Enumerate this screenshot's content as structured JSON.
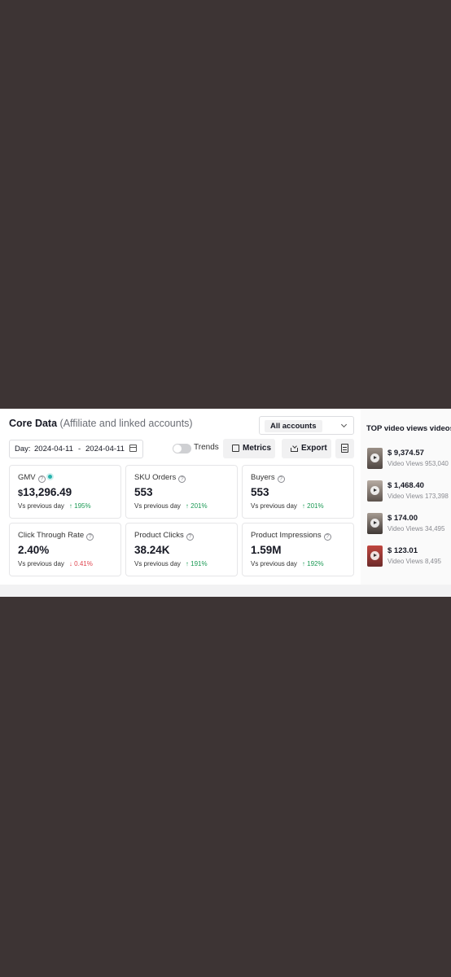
{
  "header": {
    "title": "Core Data",
    "subtitle": "(Affiliate and linked accounts)"
  },
  "account_select": {
    "value": "All accounts"
  },
  "date_range": {
    "label": "Day:",
    "start": "2024-04-11",
    "separator": "-",
    "end": "2024-04-11"
  },
  "toolbar": {
    "trends_label": "Trends",
    "trends_on": false,
    "metrics_label": "Metrics",
    "export_label": "Export"
  },
  "cards": [
    {
      "label": "GMV",
      "currency": "$",
      "value": "13,296.49",
      "compare": "Vs previous day",
      "change": "↑ 195%",
      "direction": "up"
    },
    {
      "label": "SKU Orders",
      "currency": "",
      "value": "553",
      "compare": "Vs previous day",
      "change": "↑ 201%",
      "direction": "up"
    },
    {
      "label": "Buyers",
      "currency": "",
      "value": "553",
      "compare": "Vs previous day",
      "change": "↑ 201%",
      "direction": "up"
    },
    {
      "label": "Click Through Rate",
      "currency": "",
      "value": "2.40%",
      "compare": "Vs previous day",
      "change": "↓ 0.41%",
      "direction": "down"
    },
    {
      "label": "Product Clicks",
      "currency": "",
      "value": "38.24K",
      "compare": "Vs previous day",
      "change": "↑ 191%",
      "direction": "up"
    },
    {
      "label": "Product Impressions",
      "currency": "",
      "value": "1.59M",
      "compare": "Vs previous day",
      "change": "↑ 192%",
      "direction": "up"
    }
  ],
  "top_videos": {
    "title": "TOP video views videos",
    "items": [
      {
        "amount": "$ 9,374.57",
        "views": "Video Views 953,040"
      },
      {
        "amount": "$ 1,468.40",
        "views": "Video Views 173,398"
      },
      {
        "amount": "$ 174.00",
        "views": "Video Views 34,495"
      },
      {
        "amount": "$ 123.01",
        "views": "Video Views 8,495"
      }
    ]
  },
  "colors": {
    "up": "#1c9a55",
    "down": "#e0454f",
    "accent": "#27b3ad"
  }
}
